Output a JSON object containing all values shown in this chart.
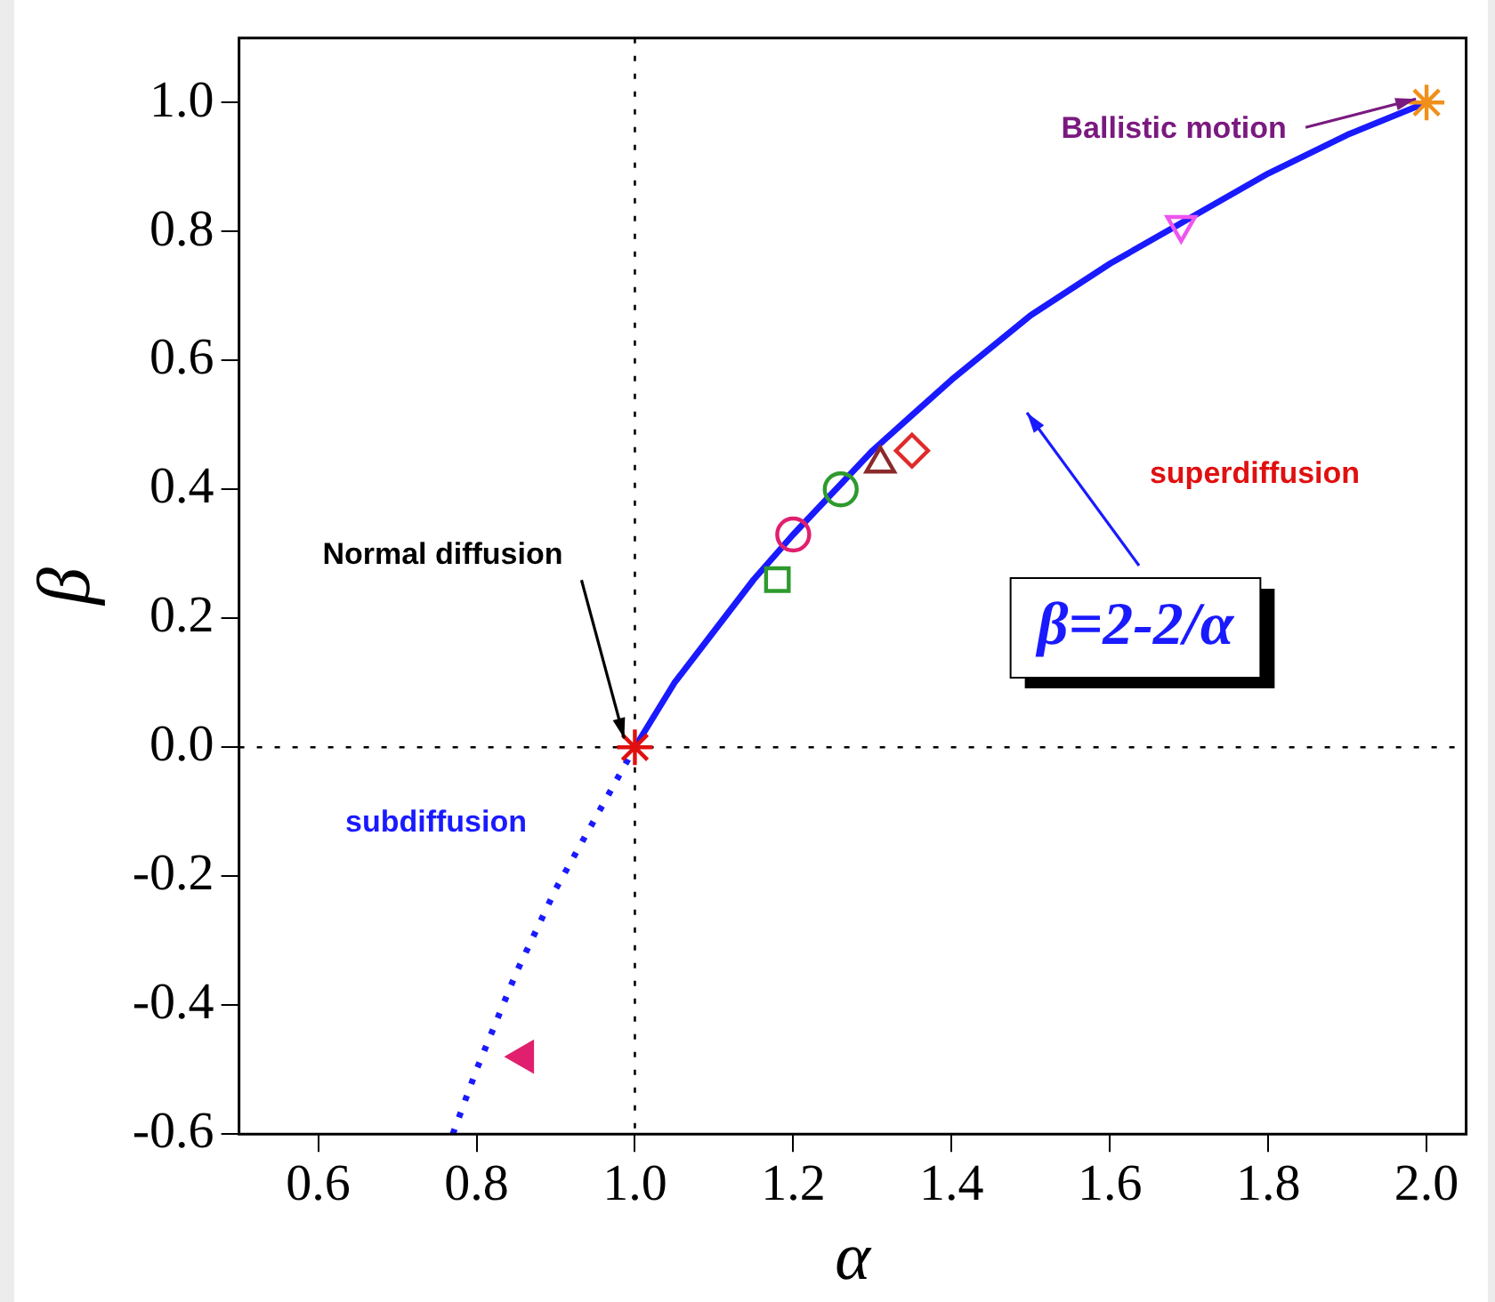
{
  "chart_data": {
    "type": "scatter",
    "xlabel": "α",
    "ylabel": "β",
    "xlim": [
      0.5,
      2.05
    ],
    "ylim": [
      -0.6,
      1.1
    ],
    "xticks": [
      0.6,
      0.8,
      {
        "value": 1,
        "label": "1.0"
      },
      1.2,
      1.4,
      1.6,
      1.8,
      {
        "value": 2,
        "label": "2.0"
      }
    ],
    "yticks": [
      -0.6,
      -0.4,
      -0.2,
      {
        "value": 0,
        "label": "0.0"
      },
      0.2,
      0.4,
      0.6,
      0.8,
      {
        "value": 1,
        "label": "1.0"
      }
    ],
    "grid": false,
    "legend": false,
    "series": [
      {
        "type": "line",
        "color": "#1a1aff",
        "line_style": "solid",
        "marker": "none",
        "x": [
          1.0,
          1.05,
          1.1,
          1.15,
          1.2,
          1.3,
          1.4,
          1.5,
          1.6,
          1.7,
          1.8,
          1.9,
          2.0
        ],
        "values": [
          0,
          0.1,
          0.18,
          0.26,
          0.33,
          0.46,
          0.57,
          0.67,
          0.75,
          0.82,
          0.89,
          0.95,
          1.0
        ]
      },
      {
        "type": "line",
        "color": "#1a1aff",
        "line_style": "dotted",
        "marker": "none",
        "x": [
          0.77,
          0.8,
          0.85,
          0.9,
          0.95,
          1.0
        ],
        "values": [
          -0.6,
          -0.5,
          -0.35,
          -0.22,
          -0.11,
          0
        ]
      },
      {
        "color": "#e0206e",
        "marker": "triangle",
        "x": [
          0.86
        ],
        "values": [
          -0.48
        ]
      },
      {
        "color": "#e01010",
        "marker": "cross",
        "x": [
          1.0
        ],
        "values": [
          0.0
        ]
      },
      {
        "color": "#2e9a2e",
        "marker": "square",
        "x": [
          1.18
        ],
        "values": [
          0.26
        ]
      },
      {
        "color": "#e0206e",
        "marker": "circle",
        "x": [
          1.2
        ],
        "values": [
          0.33
        ]
      },
      {
        "color": "#2e9a2e",
        "marker": "circle",
        "x": [
          1.26
        ],
        "values": [
          0.4
        ]
      },
      {
        "color": "#8b2a2a",
        "marker": "triangle",
        "x": [
          1.31
        ],
        "values": [
          0.44
        ]
      },
      {
        "color": "#e02a2a",
        "marker": "diamond",
        "x": [
          1.35
        ],
        "values": [
          0.46
        ]
      },
      {
        "color": "#ee55ee",
        "marker": "triangle",
        "x": [
          1.69
        ],
        "values": [
          0.81
        ]
      },
      {
        "color": "#f0901a",
        "marker": "cross",
        "x": [
          2.0
        ],
        "values": [
          1.0
        ]
      }
    ],
    "ref_lines": [
      {
        "axis": "x",
        "value": 1.0,
        "line_style": "dotted",
        "color": "#000000"
      },
      {
        "axis": "y",
        "value": 0.0,
        "line_style": "dotted",
        "color": "#000000"
      }
    ],
    "annotations": [
      {
        "text": "Ballistic motion",
        "x": 2.0,
        "y": 1.0
      },
      {
        "text": "Normal diffusion",
        "x": 1.0,
        "y": 0.0
      },
      "β=2-2/α",
      "superdiffusion",
      "subdiffusion"
    ]
  }
}
